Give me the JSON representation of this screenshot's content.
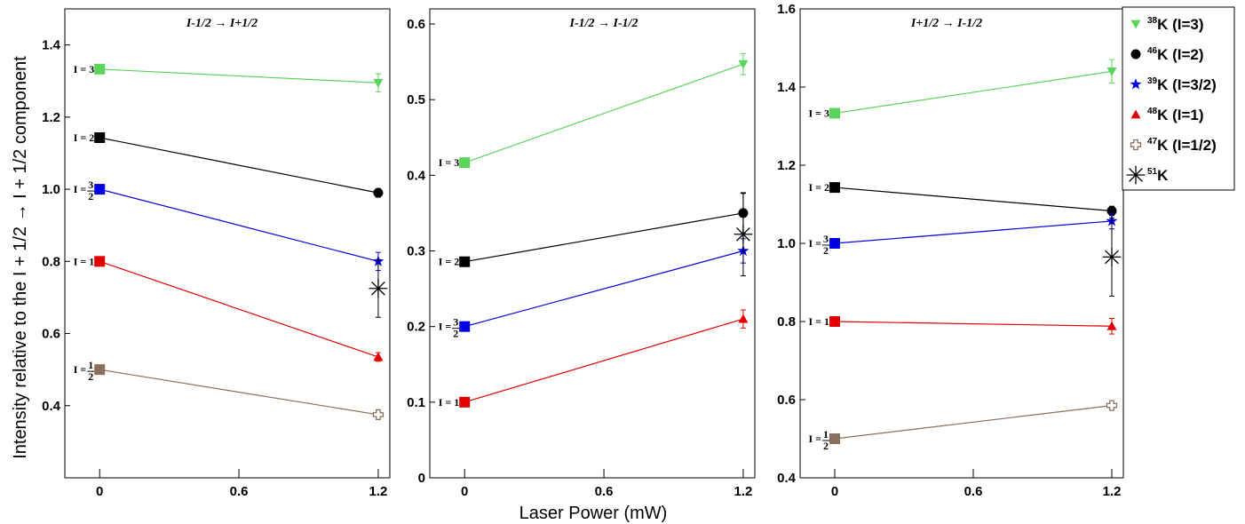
{
  "figure": {
    "ylabel": "Intensity relative to the  I + 1/2 →  I + 1/2 component",
    "xlabel": "Laser Power (mW)"
  },
  "colors": {
    "38K": "#5ad45a",
    "46K": "#000000",
    "39K": "#0000e0",
    "48K": "#e00000",
    "47K": "#8b6f5e",
    "51K": "#000000"
  },
  "legend": {
    "entries": [
      {
        "key": "38K",
        "mass": "38",
        "label": "K (I=3)",
        "marker": "triangle-down"
      },
      {
        "key": "46K",
        "mass": "46",
        "label": "K (I=2)",
        "marker": "circle"
      },
      {
        "key": "39K",
        "mass": "39",
        "label": "K (I=3/2)",
        "marker": "star"
      },
      {
        "key": "48K",
        "mass": "48",
        "label": "K (I=1)",
        "marker": "triangle-up"
      },
      {
        "key": "47K",
        "mass": "47",
        "label": "K (I=1/2)",
        "marker": "cross-open"
      },
      {
        "key": "51K",
        "mass": "51",
        "label": "K",
        "marker": "asterisk"
      }
    ]
  },
  "chart_data": [
    {
      "type": "line",
      "title": "I-1/2 → I+1/2",
      "xlim": [
        -0.15,
        1.25
      ],
      "ylim": [
        0.2,
        1.5
      ],
      "yticks": [
        0.4,
        0.6,
        0.8,
        1.0,
        1.2,
        1.4
      ],
      "ytick_labels": [
        "0.4",
        "0.6",
        "0.8",
        "1.0",
        "1.2",
        "1.4"
      ],
      "xticks": [
        0,
        0.6,
        1.2
      ],
      "xtick_labels": [
        "0",
        "0.6",
        "1.2"
      ],
      "series": [
        {
          "key": "38K",
          "x": [
            0,
            1.2
          ],
          "y": [
            1.333,
            1.295
          ],
          "yerr": [
            0,
            0.025
          ],
          "label_text": "I = 3"
        },
        {
          "key": "46K",
          "x": [
            0,
            1.2
          ],
          "y": [
            1.143,
            0.99
          ],
          "yerr": [
            0,
            0.012
          ],
          "label_text": "I = 2"
        },
        {
          "key": "39K",
          "x": [
            0,
            1.2
          ],
          "y": [
            1.0,
            0.8
          ],
          "yerr": [
            0,
            0.025
          ],
          "label_text": "I = 3/2"
        },
        {
          "key": "48K",
          "x": [
            0,
            1.2
          ],
          "y": [
            0.8,
            0.535
          ],
          "yerr": [
            0,
            0.012
          ],
          "label_text": "I = 1"
        },
        {
          "key": "47K",
          "x": [
            0,
            1.2
          ],
          "y": [
            0.5,
            0.375
          ],
          "yerr": [
            0,
            0.006
          ],
          "label_text": "I = 1/2"
        }
      ],
      "extra_points": [
        {
          "key": "51K",
          "x": 1.2,
          "y": 0.725,
          "yerr": 0.08
        }
      ]
    },
    {
      "type": "line",
      "title": "I-1/2 → I-1/2",
      "xlim": [
        -0.15,
        1.25
      ],
      "ylim": [
        0.0,
        0.62
      ],
      "yticks": [
        0,
        0.1,
        0.2,
        0.3,
        0.4,
        0.5,
        0.6
      ],
      "ytick_labels": [
        "0",
        "0.1",
        "0.2",
        "0.3",
        "0.4",
        "0.5",
        "0.6"
      ],
      "xticks": [
        0,
        0.6,
        1.2
      ],
      "xtick_labels": [
        "0",
        "0.6",
        "1.2"
      ],
      "series": [
        {
          "key": "38K",
          "x": [
            0,
            1.2
          ],
          "y": [
            0.4167,
            0.547
          ],
          "yerr": [
            0,
            0.014
          ],
          "label_text": "I = 3"
        },
        {
          "key": "46K",
          "x": [
            0,
            1.2
          ],
          "y": [
            0.2857,
            0.35
          ],
          "yerr": [
            0,
            0.026
          ],
          "label_text": "I = 2"
        },
        {
          "key": "39K",
          "x": [
            0,
            1.2
          ],
          "y": [
            0.2,
            0.3
          ],
          "yerr": [
            0,
            0.016
          ],
          "label_text": "I = 3/2"
        },
        {
          "key": "48K",
          "x": [
            0,
            1.2
          ],
          "y": [
            0.1,
            0.21
          ],
          "yerr": [
            0,
            0.012
          ],
          "label_text": "I = 1"
        }
      ],
      "extra_points": [
        {
          "key": "51K",
          "x": 1.2,
          "y": 0.322,
          "yerr": 0.055
        }
      ]
    },
    {
      "type": "line",
      "title": "I+1/2 → I-1/2",
      "xlim": [
        -0.15,
        1.25
      ],
      "ylim": [
        0.4,
        1.6
      ],
      "yticks": [
        0.4,
        0.6,
        0.8,
        1.0,
        1.2,
        1.4,
        1.6
      ],
      "ytick_labels": [
        "0.4",
        "0.6",
        "0.8",
        "1.0",
        "1.2",
        "1.4",
        "1.6"
      ],
      "xticks": [
        0,
        0.6,
        1.2
      ],
      "xtick_labels": [
        "0",
        "0.6",
        "1.2"
      ],
      "series": [
        {
          "key": "38K",
          "x": [
            0,
            1.2
          ],
          "y": [
            1.333,
            1.44
          ],
          "yerr": [
            0,
            0.03
          ],
          "label_text": "I = 3"
        },
        {
          "key": "46K",
          "x": [
            0,
            1.2
          ],
          "y": [
            1.143,
            1.083
          ],
          "yerr": [
            0,
            0.012
          ],
          "label_text": "I = 2"
        },
        {
          "key": "39K",
          "x": [
            0,
            1.2
          ],
          "y": [
            1.0,
            1.057
          ],
          "yerr": [
            0,
            0.02
          ],
          "label_text": "I = 3/2"
        },
        {
          "key": "48K",
          "x": [
            0,
            1.2
          ],
          "y": [
            0.8,
            0.788
          ],
          "yerr": [
            0,
            0.02
          ],
          "label_text": "I = 1"
        },
        {
          "key": "47K",
          "x": [
            0,
            1.2
          ],
          "y": [
            0.5,
            0.585
          ],
          "yerr": [
            0,
            0.006
          ],
          "label_text": "I = 1/2"
        }
      ],
      "extra_points": [
        {
          "key": "51K",
          "x": 1.2,
          "y": 0.965,
          "yerr": 0.1
        }
      ]
    }
  ]
}
